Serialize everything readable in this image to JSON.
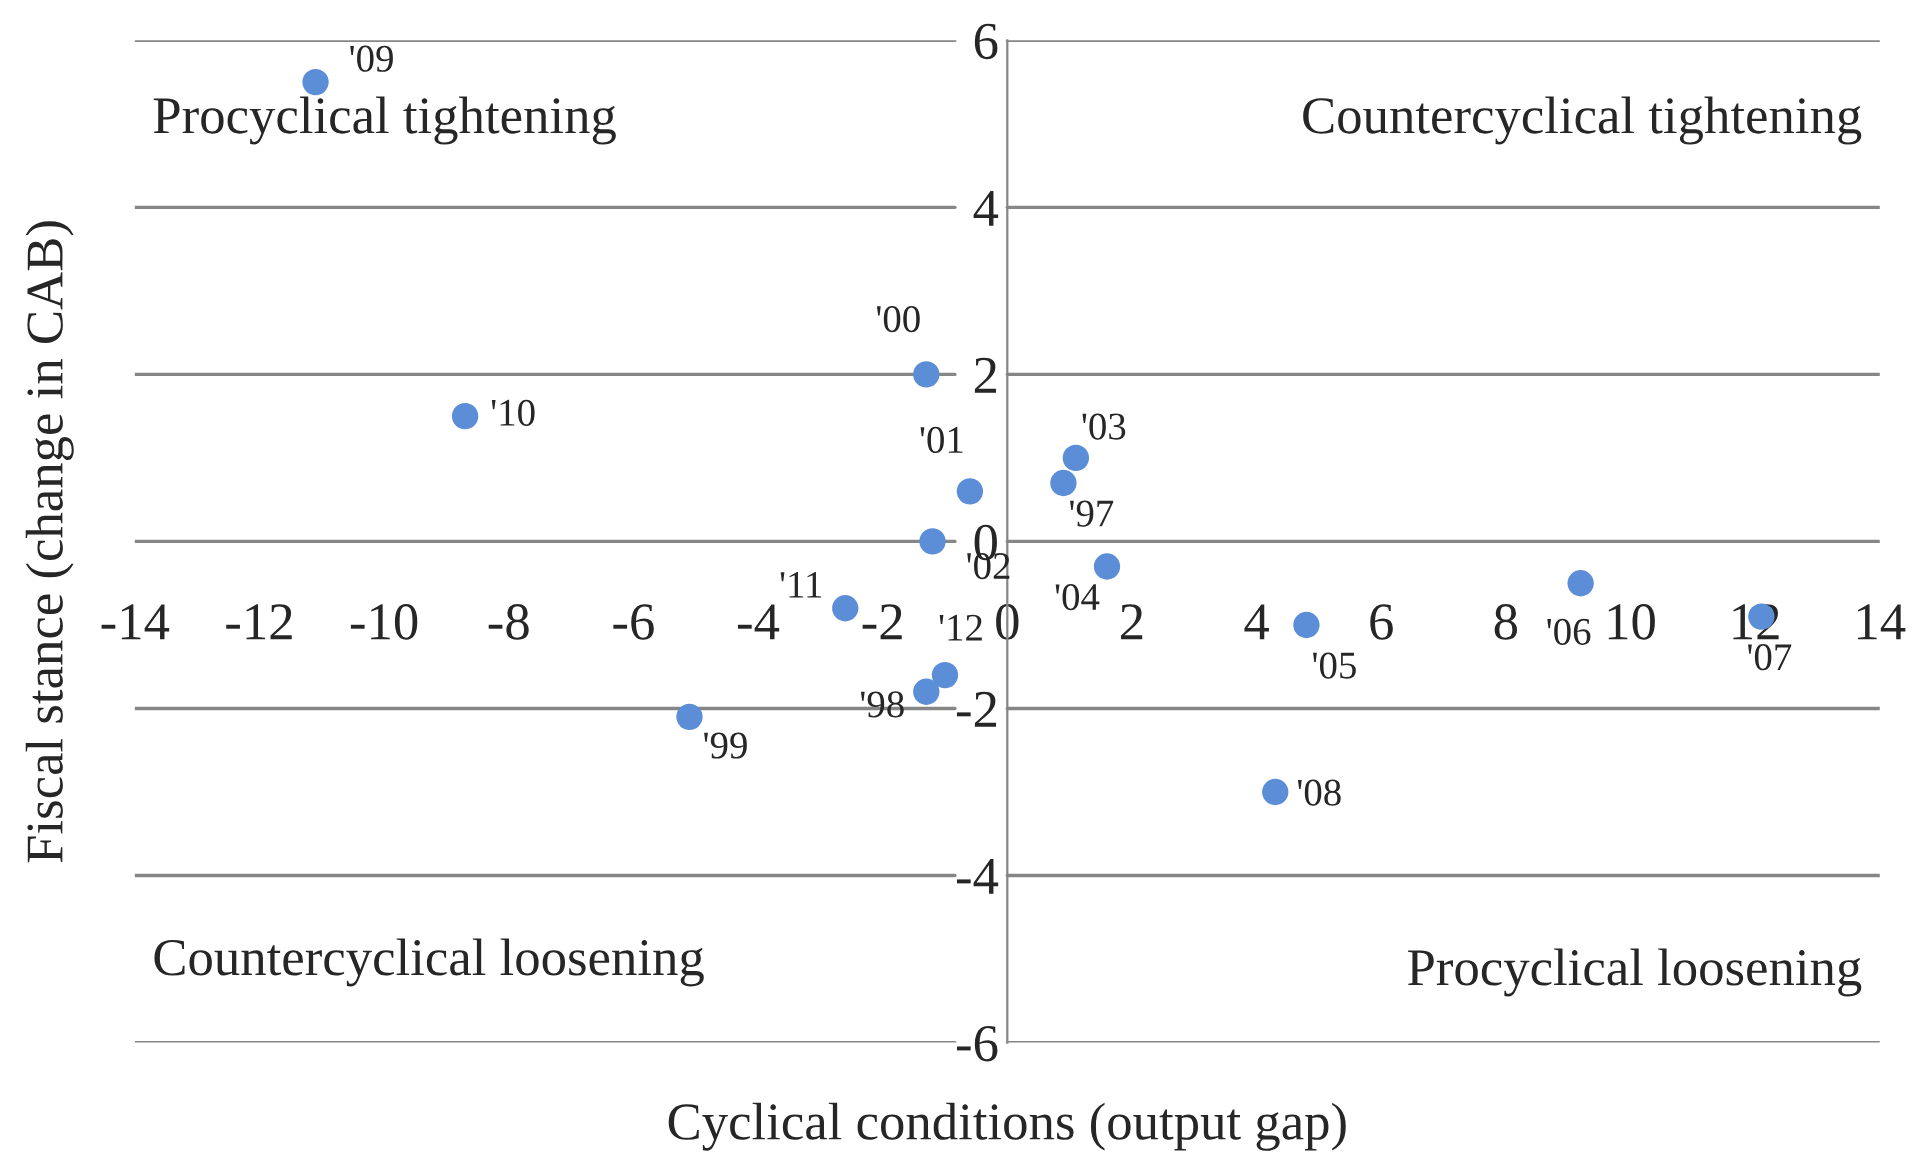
{
  "chart_data": {
    "type": "scatter",
    "xlabel": "Cyclical conditions (output gap)",
    "ylabel": "Fiscal stance (change in CAB)",
    "xlim": [
      -14,
      14
    ],
    "xticks": [
      -14,
      -12,
      -10,
      -8,
      -6,
      -4,
      -2,
      0,
      2,
      4,
      6,
      8,
      10,
      12,
      14
    ],
    "ylim": [
      -6,
      6
    ],
    "yticks": [
      -6,
      -4,
      -2,
      0,
      2,
      4,
      6
    ],
    "grid": "y",
    "marker": "circle",
    "series": [
      {
        "color": "#5b8ed6",
        "x": [
          -11.1,
          -8.7,
          -1.3,
          -0.6,
          1.1,
          0.9,
          -1.2,
          1.6,
          -2.6,
          -1.0,
          -1.3,
          -5.1,
          4.8,
          4.3,
          9.2,
          12.1
        ],
        "values": [
          5.5,
          1.5,
          2.0,
          0.6,
          1.0,
          0.7,
          0.0,
          -0.3,
          -0.8,
          -1.6,
          -1.8,
          -2.1,
          -1.0,
          -3.0,
          -0.5,
          -0.9
        ]
      }
    ],
    "annotations": [
      "Procyclical tightening",
      "Countercyclical tightening",
      "Countercyclical loosening",
      "Procyclical loosening",
      {
        "text": "'09",
        "x": -11.1,
        "y": 5.5
      },
      {
        "text": "'10",
        "x": -8.7,
        "y": 1.5
      },
      {
        "text": "'00",
        "x": -1.3,
        "y": 2.0
      },
      {
        "text": "'01",
        "x": -0.6,
        "y": 0.6
      },
      {
        "text": "'03",
        "x": 1.1,
        "y": 1.0
      },
      {
        "text": "'97",
        "x": 0.9,
        "y": 0.7
      },
      {
        "text": "'02",
        "x": -1.2,
        "y": 0.0
      },
      {
        "text": "'04",
        "x": 1.6,
        "y": -0.3
      },
      {
        "text": "'11",
        "x": -2.6,
        "y": -0.8
      },
      {
        "text": "'12",
        "x": -1.0,
        "y": -1.6
      },
      {
        "text": "'98",
        "x": -1.3,
        "y": -1.8
      },
      {
        "text": "'99",
        "x": -5.1,
        "y": -2.1
      },
      {
        "text": "'05",
        "x": 4.8,
        "y": -1.0
      },
      {
        "text": "'08",
        "x": 4.3,
        "y": -3.0
      },
      {
        "text": "'06",
        "x": 9.2,
        "y": -0.5
      },
      {
        "text": "'07",
        "x": 12.1,
        "y": -0.9
      }
    ]
  }
}
